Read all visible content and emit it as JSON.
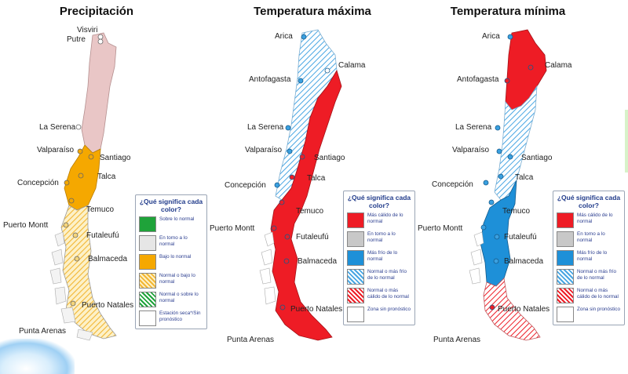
{
  "panels": [
    {
      "title": "Precipitación",
      "cities": [
        "Visviri",
        "Putre",
        "La Serena",
        "Valparaíso",
        "Santiago",
        "Concepción",
        "Talca",
        "Temuco",
        "Puerto Montt",
        "Futaleufú",
        "Balmaceda",
        "Puerto Natales",
        "Punta Arenas"
      ],
      "legend": {
        "title": "¿Qué significa cada color?",
        "items": [
          {
            "text": "Sobre lo normal",
            "color": "#1fa33a",
            "pattern": "solid"
          },
          {
            "text": "En torno a lo normal",
            "color": "#e6e6e6",
            "pattern": "solid"
          },
          {
            "text": "Bajo lo normal",
            "color": "#f5a800",
            "pattern": "solid"
          },
          {
            "text": "Normal o bajo lo normal",
            "color": "#f5a800",
            "pattern": "hatch"
          },
          {
            "text": "Normal o sobre lo normal",
            "color": "#1fa33a",
            "pattern": "hatch"
          },
          {
            "text": "Estación seca*/Sin pronóstico",
            "color": "#ffffff",
            "pattern": "solid"
          }
        ]
      }
    },
    {
      "title": "Temperatura máxima",
      "cities": [
        "Arica",
        "Calama",
        "Antofagasta",
        "La Serena",
        "Valparaíso",
        "Santiago",
        "Concepción",
        "Talca",
        "Temuco",
        "Puerto Montt",
        "Futaleufú",
        "Balmaceda",
        "Puerto Natales",
        "Punta Arenas"
      ],
      "legend": {
        "title": "¿Qué significa cada color?",
        "items": [
          {
            "text": "Más cálido de lo normal",
            "color": "#ee1c25",
            "pattern": "solid"
          },
          {
            "text": "En torno a lo normal",
            "color": "#c8c8c8",
            "pattern": "solid"
          },
          {
            "text": "Más frío de lo normal",
            "color": "#1e90d8",
            "pattern": "solid"
          },
          {
            "text": "Normal o más frío de lo normal",
            "color": "#1e90d8",
            "pattern": "hatch"
          },
          {
            "text": "Normal o más cálido de lo normal",
            "color": "#ee1c25",
            "pattern": "hatch"
          },
          {
            "text": "Zona sin pronóstico",
            "color": "#ffffff",
            "pattern": "solid"
          }
        ]
      }
    },
    {
      "title": "Temperatura mínima",
      "cities": [
        "Arica",
        "Calama",
        "Antofagasta",
        "La Serena",
        "Valparaíso",
        "Santiago",
        "Concepción",
        "Talca",
        "Temuco",
        "Puerto Montt",
        "Futaleufú",
        "Balmaceda",
        "Puerto Natales",
        "Punta Arenas"
      ],
      "legend": {
        "title": "¿Qué significa cada color?",
        "items": [
          {
            "text": "Más cálido de lo normal",
            "color": "#ee1c25",
            "pattern": "solid"
          },
          {
            "text": "En torno a lo normal",
            "color": "#c8c8c8",
            "pattern": "solid"
          },
          {
            "text": "Más frío de lo normal",
            "color": "#1e90d8",
            "pattern": "solid"
          },
          {
            "text": "Normal o más frío de lo normal",
            "color": "#1e90d8",
            "pattern": "hatch"
          },
          {
            "text": "Normal o más cálido de lo normal",
            "color": "#ee1c25",
            "pattern": "hatch"
          },
          {
            "text": "Zona sin pronóstico",
            "color": "#ffffff",
            "pattern": "solid"
          }
        ]
      }
    }
  ],
  "colors": {
    "dry_pink": "#e9c6c6",
    "below_orange": "#f5a800",
    "warm_red": "#ee1c25",
    "cold_blue": "#1e90d8",
    "legend_text": "#2a3d8f",
    "legend_title": "#1f3a8a",
    "city_dot_precip": "#ffffff",
    "city_dot_temp": "#3aa0e0"
  }
}
